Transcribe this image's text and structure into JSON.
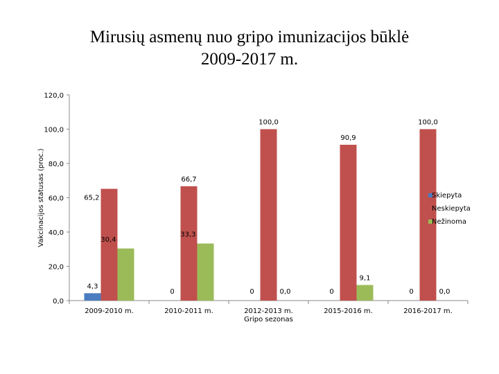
{
  "title_line1": "Mirusių asmenų nuo gripo imunizacijos būklė",
  "title_line2": "2009-2017 m.",
  "chart_data": {
    "type": "bar",
    "ylabel": "Vakcinacijos statusas (proc.)",
    "xlabel": "Gripo sezonas",
    "ylim": [
      0,
      120
    ],
    "yticks": [
      "0,0",
      "20,0",
      "40,0",
      "60,0",
      "80,0",
      "100,0",
      "120,0"
    ],
    "categories": [
      "2009-2010 m.",
      "2010-2011 m.",
      "2012-2013 m.",
      "2015-2016 m.",
      "2016-2017 m."
    ],
    "series": [
      {
        "name": "Skiepyta",
        "color": "#4a7cc0",
        "values": [
          4.3,
          0,
          0,
          0,
          0
        ],
        "labels": [
          "4,3",
          "0",
          "0",
          "0",
          "0"
        ]
      },
      {
        "name": "Neskiepyta",
        "color": "#c0504d",
        "values": [
          65.2,
          66.7,
          100.0,
          90.9,
          100.0
        ],
        "labels": [
          "65,2",
          "66,7",
          "100,0",
          "90,9",
          "100,0"
        ]
      },
      {
        "name": "Nežinoma",
        "color": "#9bbb59",
        "values": [
          30.4,
          33.3,
          0.0,
          9.1,
          0.0
        ],
        "labels": [
          "30,4",
          "33,3",
          "0,0",
          "9,1",
          "0,0"
        ]
      }
    ],
    "legend_position": "right",
    "grid": false
  }
}
